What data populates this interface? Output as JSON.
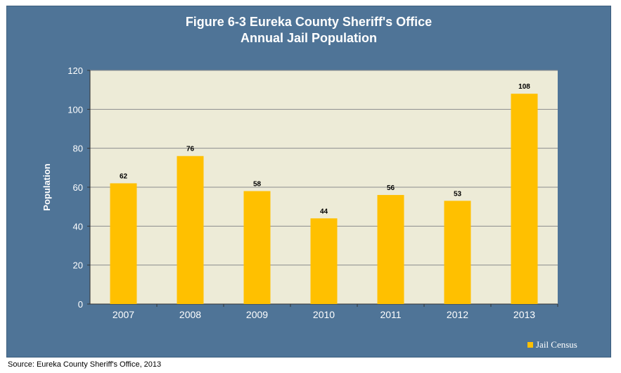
{
  "chart_data": {
    "type": "bar",
    "title": [
      "Figure 6-3 Eureka County Sheriff's Office",
      "Annual Jail Population"
    ],
    "xlabel": "",
    "ylabel": "Population",
    "categories": [
      "2007",
      "2008",
      "2009",
      "2010",
      "2011",
      "2012",
      "2013"
    ],
    "series": [
      {
        "name": "Jail Census",
        "values": [
          62,
          76,
          58,
          44,
          56,
          53,
          108
        ]
      }
    ],
    "ylim": [
      0,
      120
    ],
    "yticks": [
      0,
      20,
      40,
      60,
      80,
      100,
      120
    ],
    "grid": true,
    "legend": "bottom-right",
    "data_labels": true
  },
  "colors": {
    "frame": "#4f7497",
    "plot_bg": "#edebd7",
    "bar": "#ffc000",
    "grid": "#8c8c8c",
    "text": "#ffffff"
  },
  "source": "Source: Eureka County Sheriff's Office, 2013"
}
